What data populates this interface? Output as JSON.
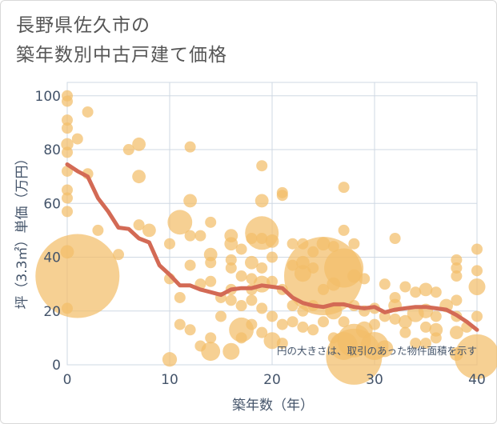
{
  "title": {
    "line1": "長野県佐久市の",
    "line2": "築年数別中古戸建て価格"
  },
  "chart_data": {
    "type": "scatter",
    "xlabel": "築年数（年）",
    "ylabel": "坪（3.3㎡）単価（万円）",
    "xlim": [
      0,
      40
    ],
    "ylim": [
      0,
      105
    ],
    "x_ticks": [
      0,
      10,
      20,
      30,
      40
    ],
    "y_ticks": [
      0,
      20,
      40,
      60,
      80,
      100
    ],
    "x_tick_labels": [
      "0",
      "10",
      "20",
      "30",
      "40"
    ],
    "y_tick_labels": [
      "0",
      "20",
      "40",
      "60",
      "80",
      "100"
    ],
    "grid": true,
    "note": "円の大きさは、取引のあった物件面積を示す",
    "colors": {
      "bubble": "#f3be6a",
      "trend": "#d36a55",
      "grid": "#cfd8e3",
      "text": "#44546a"
    },
    "points": [
      {
        "x": 0,
        "y": 100,
        "s": 1
      },
      {
        "x": 0,
        "y": 98,
        "s": 1
      },
      {
        "x": 0,
        "y": 91,
        "s": 1
      },
      {
        "x": 0,
        "y": 88,
        "s": 1
      },
      {
        "x": 0,
        "y": 82,
        "s": 1.1
      },
      {
        "x": 0,
        "y": 79,
        "s": 1
      },
      {
        "x": 0,
        "y": 72,
        "s": 1
      },
      {
        "x": 0,
        "y": 65,
        "s": 1
      },
      {
        "x": 0,
        "y": 62,
        "s": 1
      },
      {
        "x": 0,
        "y": 57,
        "s": 1
      },
      {
        "x": 0,
        "y": 42,
        "s": 1.2
      },
      {
        "x": 0,
        "y": 21,
        "s": 1
      },
      {
        "x": 1,
        "y": 33,
        "s": 7.5
      },
      {
        "x": 1,
        "y": 84,
        "s": 1
      },
      {
        "x": 2,
        "y": 94,
        "s": 1
      },
      {
        "x": 2,
        "y": 71,
        "s": 1
      },
      {
        "x": 3,
        "y": 50,
        "s": 1
      },
      {
        "x": 5,
        "y": 41,
        "s": 1
      },
      {
        "x": 6,
        "y": 80,
        "s": 1
      },
      {
        "x": 7,
        "y": 82,
        "s": 1.2
      },
      {
        "x": 7,
        "y": 70,
        "s": 1.2
      },
      {
        "x": 7,
        "y": 52,
        "s": 1
      },
      {
        "x": 8,
        "y": 50,
        "s": 1.2
      },
      {
        "x": 10,
        "y": 45,
        "s": 1
      },
      {
        "x": 10,
        "y": 32,
        "s": 1
      },
      {
        "x": 10,
        "y": 2,
        "s": 1.3
      },
      {
        "x": 11,
        "y": 53,
        "s": 2.2
      },
      {
        "x": 11,
        "y": 25,
        "s": 1
      },
      {
        "x": 11,
        "y": 15,
        "s": 1
      },
      {
        "x": 12,
        "y": 81,
        "s": 1
      },
      {
        "x": 12,
        "y": 61,
        "s": 1.2
      },
      {
        "x": 12,
        "y": 48,
        "s": 1
      },
      {
        "x": 12,
        "y": 37,
        "s": 1
      },
      {
        "x": 12,
        "y": 13,
        "s": 1
      },
      {
        "x": 13,
        "y": 48,
        "s": 1
      },
      {
        "x": 13,
        "y": 30,
        "s": 1
      },
      {
        "x": 13,
        "y": 7,
        "s": 1
      },
      {
        "x": 14,
        "y": 53,
        "s": 1
      },
      {
        "x": 14,
        "y": 41,
        "s": 1.2
      },
      {
        "x": 14,
        "y": 38,
        "s": 1
      },
      {
        "x": 14,
        "y": 31,
        "s": 1
      },
      {
        "x": 14,
        "y": 10,
        "s": 1
      },
      {
        "x": 14,
        "y": 5,
        "s": 1.7
      },
      {
        "x": 15,
        "y": 25,
        "s": 1
      },
      {
        "x": 15,
        "y": 18,
        "s": 1
      },
      {
        "x": 16,
        "y": 48,
        "s": 1.2
      },
      {
        "x": 16,
        "y": 45,
        "s": 1.2
      },
      {
        "x": 16,
        "y": 39,
        "s": 1
      },
      {
        "x": 16,
        "y": 36,
        "s": 1
      },
      {
        "x": 16,
        "y": 28,
        "s": 1
      },
      {
        "x": 16,
        "y": 24,
        "s": 1
      },
      {
        "x": 16,
        "y": 5,
        "s": 1.5
      },
      {
        "x": 17,
        "y": 43,
        "s": 1
      },
      {
        "x": 17,
        "y": 33,
        "s": 1
      },
      {
        "x": 17,
        "y": 22,
        "s": 1
      },
      {
        "x": 17,
        "y": 13,
        "s": 2.2
      },
      {
        "x": 17,
        "y": 10,
        "s": 1
      },
      {
        "x": 18,
        "y": 47,
        "s": 1
      },
      {
        "x": 18,
        "y": 38,
        "s": 1.2
      },
      {
        "x": 18,
        "y": 32,
        "s": 1
      },
      {
        "x": 18,
        "y": 28,
        "s": 1
      },
      {
        "x": 18,
        "y": 24,
        "s": 1
      },
      {
        "x": 18,
        "y": 15,
        "s": 1
      },
      {
        "x": 19,
        "y": 74,
        "s": 1
      },
      {
        "x": 19,
        "y": 61,
        "s": 1.2
      },
      {
        "x": 19,
        "y": 49,
        "s": 3
      },
      {
        "x": 19,
        "y": 47,
        "s": 1
      },
      {
        "x": 19,
        "y": 36,
        "s": 1
      },
      {
        "x": 19,
        "y": 30,
        "s": 1.5
      },
      {
        "x": 19,
        "y": 21,
        "s": 1
      },
      {
        "x": 19,
        "y": 12,
        "s": 1
      },
      {
        "x": 20,
        "y": 46,
        "s": 1.2
      },
      {
        "x": 20,
        "y": 40,
        "s": 1
      },
      {
        "x": 20,
        "y": 31,
        "s": 1
      },
      {
        "x": 20,
        "y": 18,
        "s": 1
      },
      {
        "x": 20,
        "y": 9,
        "s": 1.5
      },
      {
        "x": 21,
        "y": 64,
        "s": 1
      },
      {
        "x": 21,
        "y": 63,
        "s": 1
      },
      {
        "x": 21,
        "y": 28,
        "s": 1
      },
      {
        "x": 21,
        "y": 15,
        "s": 1
      },
      {
        "x": 21,
        "y": 8,
        "s": 1
      },
      {
        "x": 22,
        "y": 45,
        "s": 1
      },
      {
        "x": 22,
        "y": 37,
        "s": 1
      },
      {
        "x": 22,
        "y": 22,
        "s": 1
      },
      {
        "x": 22,
        "y": 16,
        "s": 1
      },
      {
        "x": 23,
        "y": 45,
        "s": 1
      },
      {
        "x": 23,
        "y": 38,
        "s": 1.2
      },
      {
        "x": 23,
        "y": 34,
        "s": 1.5
      },
      {
        "x": 23,
        "y": 20,
        "s": 1
      },
      {
        "x": 23,
        "y": 14,
        "s": 1
      },
      {
        "x": 24,
        "y": 42,
        "s": 1
      },
      {
        "x": 24,
        "y": 36,
        "s": 1
      },
      {
        "x": 24,
        "y": 22,
        "s": 1
      },
      {
        "x": 24,
        "y": 13,
        "s": 1
      },
      {
        "x": 25,
        "y": 33,
        "s": 7
      },
      {
        "x": 25,
        "y": 45,
        "s": 1.2
      },
      {
        "x": 25,
        "y": 28,
        "s": 1
      },
      {
        "x": 25,
        "y": 16,
        "s": 1
      },
      {
        "x": 26,
        "y": 44,
        "s": 1
      },
      {
        "x": 26,
        "y": 30,
        "s": 1.2
      },
      {
        "x": 26,
        "y": 20,
        "s": 1.5
      },
      {
        "x": 26,
        "y": 10,
        "s": 1
      },
      {
        "x": 27,
        "y": 66,
        "s": 1
      },
      {
        "x": 27,
        "y": 50,
        "s": 1
      },
      {
        "x": 27,
        "y": 36,
        "s": 3.5
      },
      {
        "x": 27,
        "y": 16,
        "s": 1
      },
      {
        "x": 27,
        "y": 7,
        "s": 2.5
      },
      {
        "x": 28,
        "y": 45,
        "s": 1
      },
      {
        "x": 28,
        "y": 33,
        "s": 1.2
      },
      {
        "x": 28,
        "y": 22,
        "s": 1
      },
      {
        "x": 28,
        "y": 9,
        "s": 3
      },
      {
        "x": 28,
        "y": 3,
        "s": 5
      },
      {
        "x": 29,
        "y": 32,
        "s": 1
      },
      {
        "x": 29,
        "y": 20,
        "s": 1
      },
      {
        "x": 29,
        "y": 13,
        "s": 1.5
      },
      {
        "x": 30,
        "y": 21,
        "s": 1
      },
      {
        "x": 30,
        "y": 15,
        "s": 1
      },
      {
        "x": 30,
        "y": 7,
        "s": 2.5
      },
      {
        "x": 31,
        "y": 30,
        "s": 1
      },
      {
        "x": 31,
        "y": 18,
        "s": 1
      },
      {
        "x": 31,
        "y": 6,
        "s": 1.5
      },
      {
        "x": 32,
        "y": 47,
        "s": 1
      },
      {
        "x": 32,
        "y": 25,
        "s": 1
      },
      {
        "x": 32,
        "y": 22,
        "s": 1.2
      },
      {
        "x": 32,
        "y": 17,
        "s": 1
      },
      {
        "x": 33,
        "y": 29,
        "s": 1
      },
      {
        "x": 33,
        "y": 16,
        "s": 1.2
      },
      {
        "x": 33,
        "y": 12,
        "s": 1
      },
      {
        "x": 34,
        "y": 27,
        "s": 1
      },
      {
        "x": 34,
        "y": 19,
        "s": 1.5
      },
      {
        "x": 34,
        "y": 8,
        "s": 1
      },
      {
        "x": 35,
        "y": 28,
        "s": 1.2
      },
      {
        "x": 35,
        "y": 20,
        "s": 1.3
      },
      {
        "x": 35,
        "y": 14,
        "s": 1
      },
      {
        "x": 35,
        "y": 8,
        "s": 1
      },
      {
        "x": 36,
        "y": 27,
        "s": 1
      },
      {
        "x": 36,
        "y": 18,
        "s": 1
      },
      {
        "x": 36,
        "y": 13,
        "s": 1.2
      },
      {
        "x": 36,
        "y": 10,
        "s": 1
      },
      {
        "x": 37,
        "y": 22,
        "s": 1.2
      },
      {
        "x": 38,
        "y": 39,
        "s": 1
      },
      {
        "x": 38,
        "y": 36,
        "s": 1
      },
      {
        "x": 38,
        "y": 33,
        "s": 1
      },
      {
        "x": 38,
        "y": 24,
        "s": 1
      },
      {
        "x": 38,
        "y": 18,
        "s": 1
      },
      {
        "x": 38,
        "y": 12,
        "s": 1.2
      },
      {
        "x": 38,
        "y": 4,
        "s": 1.2
      },
      {
        "x": 39,
        "y": 14,
        "s": 1
      },
      {
        "x": 40,
        "y": 43,
        "s": 1
      },
      {
        "x": 40,
        "y": 35,
        "s": 1
      },
      {
        "x": 40,
        "y": 29,
        "s": 1.5
      },
      {
        "x": 40,
        "y": 18,
        "s": 1
      },
      {
        "x": 40,
        "y": 3,
        "s": 4
      }
    ],
    "trend": {
      "x": [
        0,
        1,
        2,
        3,
        4,
        5,
        6,
        7,
        8,
        9,
        10,
        11,
        12,
        13,
        14,
        15,
        16,
        17,
        18,
        19,
        20,
        21,
        22,
        23,
        24,
        25,
        26,
        27,
        28,
        29,
        30,
        31,
        32,
        33,
        34,
        35,
        36,
        37,
        38,
        39,
        40
      ],
      "y": [
        74.5,
        72,
        70,
        62,
        57,
        51,
        50.5,
        47,
        45.5,
        37,
        33.5,
        29.5,
        29.5,
        28,
        27,
        26,
        28,
        28.5,
        28.5,
        29.5,
        29,
        28.5,
        25,
        23,
        22,
        21.5,
        22.5,
        22.5,
        21.5,
        21,
        21.5,
        19.5,
        20.5,
        21,
        21.5,
        21.5,
        21,
        20.5,
        18.5,
        16,
        13
      ]
    }
  }
}
